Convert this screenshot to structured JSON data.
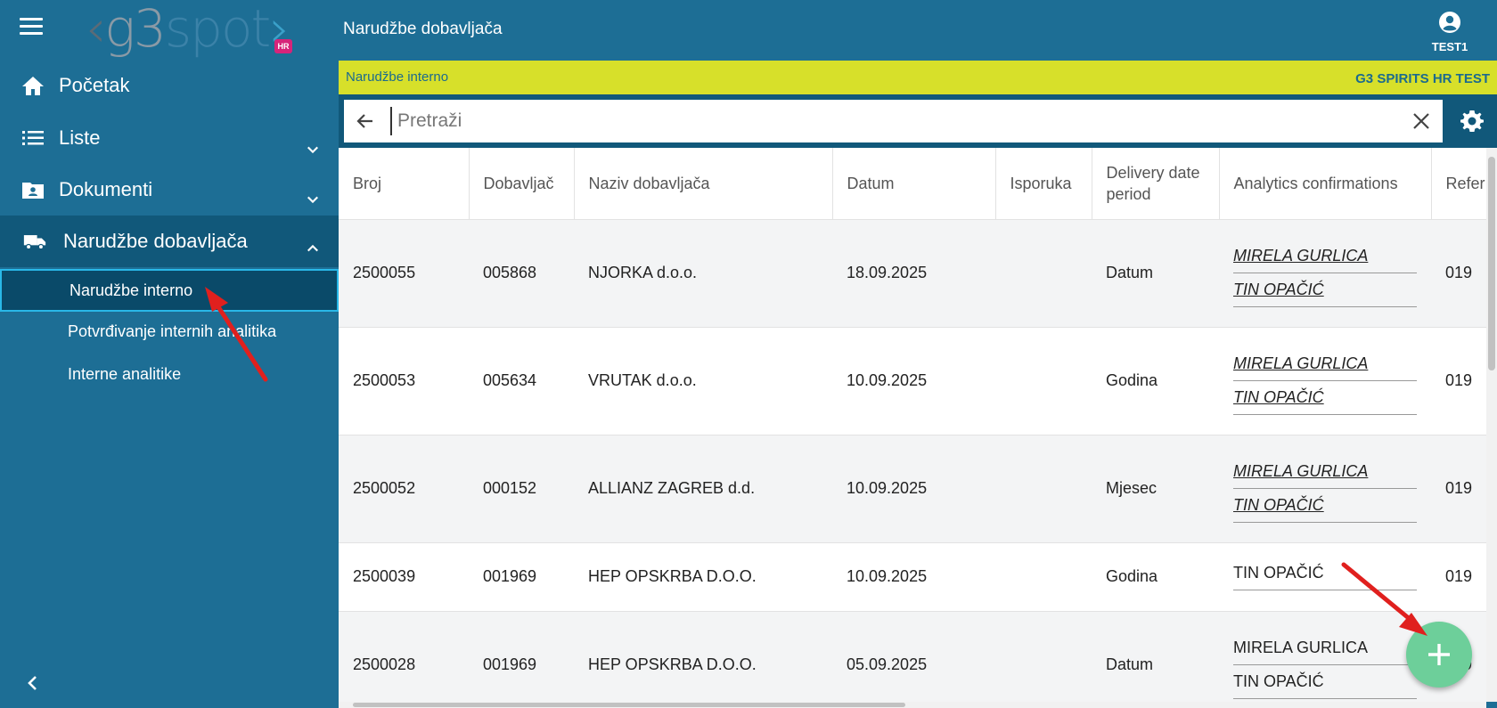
{
  "app": {
    "logo_text_g3": "g3",
    "logo_text_spot": "spot",
    "logo_badge": "HR"
  },
  "sidebar": {
    "items": [
      {
        "label": "Početak",
        "icon": "home-icon"
      },
      {
        "label": "Liste",
        "icon": "list-icon"
      },
      {
        "label": "Dokumenti",
        "icon": "folder-user-icon"
      },
      {
        "label": "Narudžbe dobavljača",
        "icon": "truck-icon"
      }
    ],
    "subitems": [
      {
        "label": "Narudžbe interno",
        "active": true
      },
      {
        "label": "Potvrđivanje internih analitika"
      },
      {
        "label": "Interne analitike"
      }
    ]
  },
  "header": {
    "title": "Narudžbe dobavljača",
    "user": "TEST1"
  },
  "strip": {
    "left": "Narudžbe interno",
    "right": "G3 SPIRITS HR TEST"
  },
  "search": {
    "placeholder": "Pretraži",
    "value": ""
  },
  "table": {
    "columns": [
      "Broj",
      "Dobavljač",
      "Naziv dobavljača",
      "Datum",
      "Isporuka",
      "Delivery date period",
      "Analytics confirmations",
      "Refer"
    ],
    "rows": [
      {
        "broj": "2500055",
        "dobavljac": "005868",
        "naziv": "NJORKA d.o.o.",
        "datum": "18.09.2025",
        "isporuka": "",
        "period": "Datum",
        "confirmations": [
          "MIRELA GURLICA",
          "TIN OPAČIĆ"
        ],
        "links": true,
        "refer": "019"
      },
      {
        "broj": "2500053",
        "dobavljac": "005634",
        "naziv": "VRUTAK d.o.o.",
        "datum": "10.09.2025",
        "isporuka": "",
        "period": "Godina",
        "confirmations": [
          "MIRELA GURLICA",
          "TIN OPAČIĆ"
        ],
        "links": true,
        "refer": "019"
      },
      {
        "broj": "2500052",
        "dobavljac": "000152",
        "naziv": "ALLIANZ ZAGREB d.d.",
        "datum": "10.09.2025",
        "isporuka": "",
        "period": "Mjesec",
        "confirmations": [
          "MIRELA GURLICA",
          "TIN OPAČIĆ"
        ],
        "links": true,
        "refer": "019"
      },
      {
        "broj": "2500039",
        "dobavljac": "001969",
        "naziv": "HEP OPSKRBA D.O.O.",
        "datum": "10.09.2025",
        "isporuka": "",
        "period": "Godina",
        "confirmations": [
          "TIN OPAČIĆ"
        ],
        "links": false,
        "refer": "019"
      },
      {
        "broj": "2500028",
        "dobavljac": "001969",
        "naziv": "HEP OPSKRBA D.O.O.",
        "datum": "05.09.2025",
        "isporuka": "",
        "period": "Datum",
        "confirmations": [
          "MIRELA GURLICA",
          "TIN OPAČIĆ"
        ],
        "links": false,
        "refer": "019"
      }
    ]
  },
  "colors": {
    "primary": "#1d6e95",
    "accent_strip": "#d7e02a",
    "fab": "#6dcf9a",
    "annotation_arrow": "#e0201e"
  }
}
